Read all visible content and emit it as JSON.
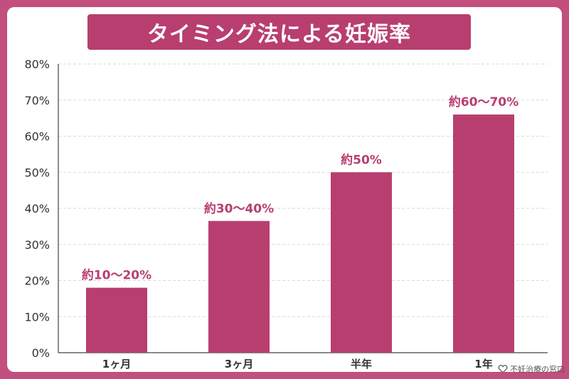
{
  "colors": {
    "background": "#c24f7e",
    "title_bg": "#b83e70",
    "bar": "#b83e70",
    "label": "#b83e70"
  },
  "source": {
    "icon": "heart-hands-icon",
    "text": "不妊治療の窓口"
  },
  "chart_data": {
    "type": "bar",
    "title": "タイミング法による妊娠率",
    "xlabel": "",
    "ylabel": "",
    "categories": [
      "1ヶ月",
      "3ヶ月",
      "半年",
      "1年"
    ],
    "values": [
      18,
      36.5,
      50,
      66
    ],
    "data_labels": [
      "約10〜20%",
      "約30〜40%",
      "約50%",
      "約60〜70%"
    ],
    "ylim": [
      0,
      80
    ],
    "yticks": [
      "0%",
      "10%",
      "20%",
      "30%",
      "40%",
      "50%",
      "60%",
      "70%",
      "80%"
    ],
    "grid": true,
    "legend": "none"
  }
}
